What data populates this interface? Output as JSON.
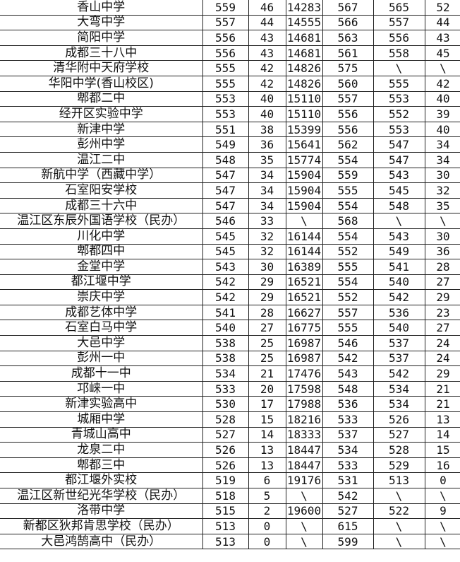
{
  "rows": [
    [
      "香山中学",
      "559",
      "46",
      "14283",
      "567",
      "565",
      "52"
    ],
    [
      "大弯中学",
      "557",
      "44",
      "14555",
      "566",
      "557",
      "44"
    ],
    [
      "简阳中学",
      "556",
      "43",
      "14681",
      "563",
      "556",
      "43"
    ],
    [
      "成都三十八中",
      "556",
      "43",
      "14681",
      "561",
      "558",
      "45"
    ],
    [
      "清华附中天府学校",
      "555",
      "42",
      "14826",
      "575",
      "\\",
      "\\"
    ],
    [
      "华阳中学(香山校区)",
      "555",
      "42",
      "14826",
      "560",
      "555",
      "42"
    ],
    [
      "郫都二中",
      "553",
      "40",
      "15110",
      "557",
      "553",
      "40"
    ],
    [
      "经开区实验中学",
      "553",
      "40",
      "15110",
      "556",
      "552",
      "39"
    ],
    [
      "新津中学",
      "551",
      "38",
      "15399",
      "556",
      "553",
      "40"
    ],
    [
      "彭州中学",
      "549",
      "36",
      "15641",
      "562",
      "547",
      "34"
    ],
    [
      "温江二中",
      "548",
      "35",
      "15774",
      "554",
      "547",
      "34"
    ],
    [
      "新航中学（西藏中学）",
      "547",
      "34",
      "15904",
      "559",
      "543",
      "30"
    ],
    [
      "石室阳安学校",
      "547",
      "34",
      "15904",
      "555",
      "545",
      "32"
    ],
    [
      "成都三十六中",
      "547",
      "34",
      "15904",
      "554",
      "548",
      "35"
    ],
    [
      "温江区东辰外国语学校（民办）",
      "546",
      "33",
      "\\",
      "568",
      "\\",
      "\\"
    ],
    [
      "川化中学",
      "545",
      "32",
      "16144",
      "554",
      "543",
      "30"
    ],
    [
      "郫都四中",
      "545",
      "32",
      "16144",
      "552",
      "549",
      "36"
    ],
    [
      "金堂中学",
      "543",
      "30",
      "16389",
      "555",
      "541",
      "28"
    ],
    [
      "都江堰中学",
      "542",
      "29",
      "16521",
      "554",
      "540",
      "27"
    ],
    [
      "崇庆中学",
      "542",
      "29",
      "16521",
      "552",
      "542",
      "29"
    ],
    [
      "成都艺体中学",
      "541",
      "28",
      "16627",
      "557",
      "536",
      "23"
    ],
    [
      "石室白马中学",
      "540",
      "27",
      "16775",
      "555",
      "540",
      "27"
    ],
    [
      "大邑中学",
      "538",
      "25",
      "16987",
      "546",
      "537",
      "24"
    ],
    [
      "彭州一中",
      "538",
      "25",
      "16987",
      "542",
      "537",
      "24"
    ],
    [
      "成都十一中",
      "534",
      "21",
      "17476",
      "543",
      "542",
      "29"
    ],
    [
      "邛崃一中",
      "533",
      "20",
      "17598",
      "548",
      "534",
      "21"
    ],
    [
      "新津实验高中",
      "530",
      "17",
      "17988",
      "536",
      "534",
      "21"
    ],
    [
      "城厢中学",
      "528",
      "15",
      "18216",
      "533",
      "526",
      "13"
    ],
    [
      "青城山高中",
      "527",
      "14",
      "18333",
      "537",
      "527",
      "14"
    ],
    [
      "龙泉二中",
      "526",
      "13",
      "18447",
      "534",
      "528",
      "15"
    ],
    [
      "郫都三中",
      "526",
      "13",
      "18447",
      "533",
      "529",
      "16"
    ],
    [
      "都江堰外实校",
      "519",
      "6",
      "19176",
      "531",
      "513",
      "0"
    ],
    [
      "温江区新世纪光华学校（民办）",
      "518",
      "5",
      "\\",
      "542",
      "\\",
      "\\"
    ],
    [
      "洛带中学",
      "515",
      "2",
      "19600",
      "527",
      "522",
      "9"
    ],
    [
      "新都区狄邦肯思学校（民办）",
      "513",
      "0",
      "\\",
      "615",
      "\\",
      "\\"
    ],
    [
      "大邑鸿鹄高中（民办）",
      "513",
      "0",
      "\\",
      "599",
      "\\",
      "\\"
    ]
  ]
}
